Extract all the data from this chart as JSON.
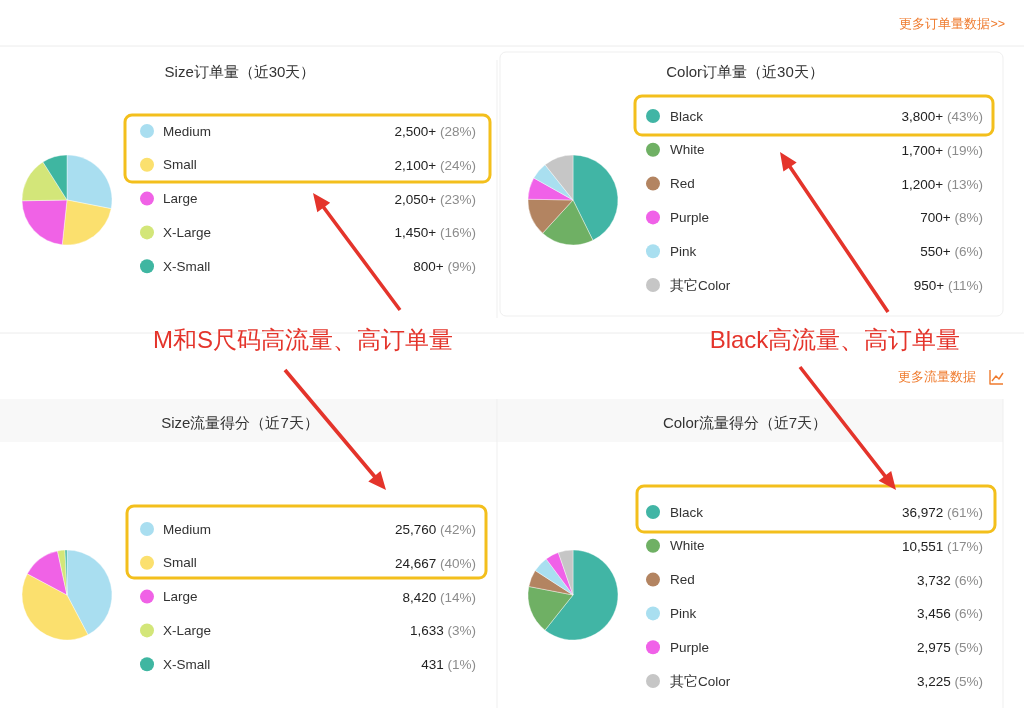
{
  "chart_data": [
    {
      "type": "pie",
      "title": "Size订单量（近30天）",
      "categories": [
        "Medium",
        "Small",
        "Large",
        "X-Large",
        "X-Small"
      ],
      "values": [
        2500,
        2100,
        2050,
        1450,
        800
      ],
      "value_labels": [
        "2,500+ (28%)",
        "2,100+ (24%)",
        "2,050+ (23%)",
        "1,450+ (16%)",
        "800+ (9%)"
      ],
      "colors": [
        "#a9def0",
        "#fbe06e",
        "#f062e6",
        "#d3e679",
        "#3fb6a1"
      ],
      "legend": "right",
      "annotations": [
        "M和S尺码高流量、高订单量"
      ]
    },
    {
      "type": "pie",
      "title": "Color订单量（近30天）",
      "categories": [
        "Black",
        "White",
        "Red",
        "Purple",
        "Pink",
        "其它Color"
      ],
      "values": [
        3800,
        1700,
        1200,
        700,
        550,
        950
      ],
      "value_labels": [
        "3,800+ (43%)",
        "1,700+ (19%)",
        "1,200+ (13%)",
        "700+ (8%)",
        "550+ (6%)",
        "950+ (11%)"
      ],
      "colors": [
        "#41b5a5",
        "#6fb064",
        "#b38461",
        "#f061e8",
        "#a9dff0",
        "#c6c6c6"
      ],
      "legend": "right",
      "annotations": [
        "更多订单量数据>>",
        "Black高流量、高订单量"
      ]
    },
    {
      "type": "pie",
      "title": "Size流量得分（近7天）",
      "categories": [
        "Medium",
        "Small",
        "Large",
        "X-Large",
        "X-Small"
      ],
      "values": [
        25760,
        24667,
        8420,
        1633,
        431
      ],
      "value_labels": [
        "25,760 (42%)",
        "24,667 (40%)",
        "8,420 (14%)",
        "1,633 (3%)",
        "431 (1%)"
      ],
      "colors": [
        "#a9def0",
        "#fbe06e",
        "#f062e6",
        "#d3e679",
        "#3fb6a1"
      ],
      "legend": "right"
    },
    {
      "type": "pie",
      "title": "Color流量得分（近7天）",
      "categories": [
        "Black",
        "White",
        "Red",
        "Pink",
        "Purple",
        "其它Color"
      ],
      "values": [
        36972,
        10551,
        3732,
        3456,
        2975,
        3225
      ],
      "value_labels": [
        "36,972 (61%)",
        "10,551 (17%)",
        "3,732 (6%)",
        "3,456 (6%)",
        "2,975 (5%)",
        "3,225 (5%)"
      ],
      "colors": [
        "#41b5a5",
        "#6fb064",
        "#b38461",
        "#a9dff0",
        "#f061e8",
        "#c6c6c6"
      ],
      "legend": "right",
      "annotations": [
        "更多流量数据"
      ]
    }
  ]
}
